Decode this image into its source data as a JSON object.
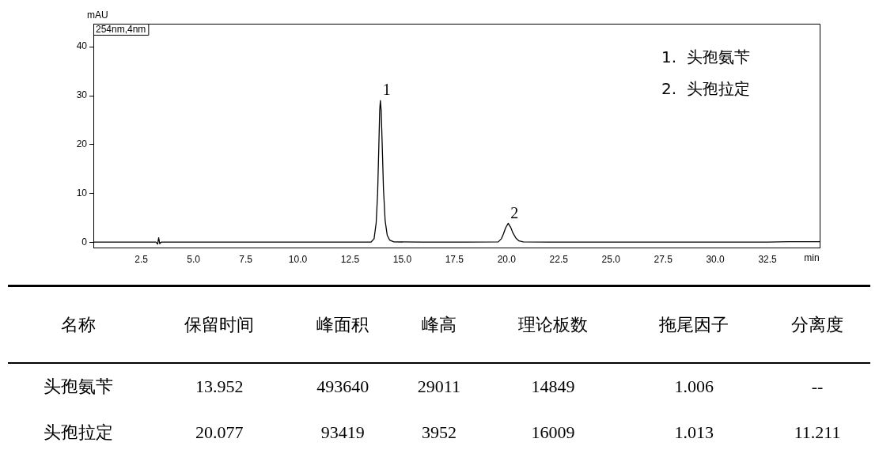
{
  "chart_data": {
    "type": "line",
    "xlabel": "min",
    "ylabel": "mAU",
    "xlim": [
      0.2,
      35
    ],
    "ylim": [
      -1,
      44.7
    ],
    "xticks": [
      2.5,
      {
        "value": 5,
        "label": "5.0"
      },
      7.5,
      {
        "value": 10,
        "label": "10.0"
      },
      12.5,
      {
        "value": 15,
        "label": "15.0"
      },
      17.5,
      {
        "value": 20,
        "label": "20.0"
      },
      22.5,
      {
        "value": 25,
        "label": "25.0"
      },
      27.5,
      {
        "value": 30,
        "label": "30.0"
      },
      32.5
    ],
    "yticks": [
      0,
      10,
      20,
      30,
      40
    ],
    "grid": false,
    "legend": false,
    "marker": "none",
    "line_style": "solid",
    "series": [
      {
        "color": "#000000",
        "x": [
          0.2,
          1.5,
          3.0,
          3.2,
          3.28,
          3.33,
          3.38,
          3.45,
          3.6,
          6,
          9,
          12,
          13.5,
          13.65,
          13.75,
          13.82,
          13.88,
          13.92,
          13.952,
          13.99,
          14.04,
          14.1,
          14.18,
          14.28,
          14.4,
          14.6,
          16,
          18,
          19.6,
          19.75,
          19.85,
          19.95,
          20.077,
          20.2,
          20.3,
          20.45,
          20.6,
          20.8,
          22,
          26,
          30,
          32.5,
          33.5,
          35
        ],
        "values": [
          0.1,
          0.1,
          0.1,
          0.1,
          -0.3,
          1.0,
          -0.2,
          0.1,
          0.1,
          0.1,
          0.1,
          0.1,
          0.1,
          0.8,
          4,
          10,
          20,
          27,
          29.0,
          27,
          20,
          11,
          4.5,
          1.5,
          0.5,
          0.15,
          0.1,
          0.1,
          0.15,
          0.8,
          1.8,
          3,
          3.95,
          3.1,
          2,
          0.9,
          0.35,
          0.15,
          0.1,
          0.1,
          0.1,
          0.1,
          0.2,
          0.2
        ]
      }
    ],
    "annotations": [
      "254nm,4nm",
      "1.  头孢氨苄",
      "2.  头孢拉定",
      {
        "text": "1",
        "x": 13.952,
        "y": 29.0
      },
      {
        "text": "2",
        "x": 20.077,
        "y": 3.95
      },
      "名称",
      "保留时间",
      "峰面积",
      "峰高",
      "理论板数",
      "拖尾因子",
      "分离度",
      "头孢氨苄",
      "13.952",
      "493640",
      "29011",
      "14849",
      "1.006",
      "--",
      "头孢拉定",
      "20.077",
      "93419",
      "3952",
      "16009",
      "1.013",
      "11.211"
    ]
  }
}
